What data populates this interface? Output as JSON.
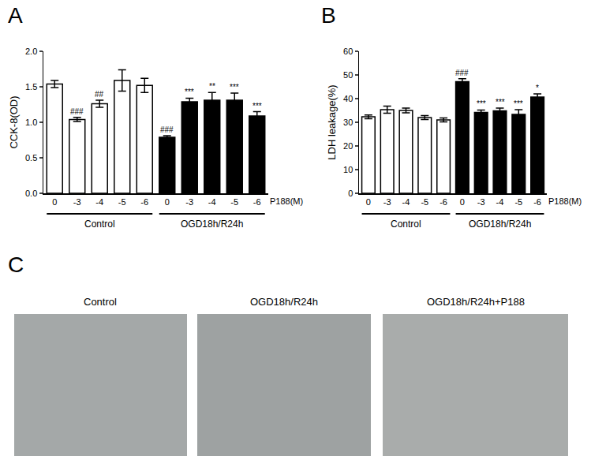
{
  "chart_data": [
    {
      "type": "bar",
      "title": "A",
      "y_label": "CCK-8(OD)",
      "x_label": "P188(M)",
      "categories": [
        "0",
        "-3",
        "-4",
        "-5",
        "-6",
        "0",
        "-3",
        "-4",
        "-5",
        "-6"
      ],
      "x_groups": [
        "Control",
        "OGD18h/R24h"
      ],
      "values": [
        1.54,
        1.04,
        1.26,
        1.59,
        1.52,
        0.79,
        1.29,
        1.31,
        1.31,
        1.09
      ],
      "errors": [
        0.05,
        0.03,
        0.05,
        0.15,
        0.1,
        0.02,
        0.05,
        0.11,
        0.1,
        0.06
      ],
      "marks": [
        null,
        "###",
        "##",
        null,
        null,
        "###",
        "***",
        "**",
        "***",
        "***"
      ],
      "colors": [
        "#ffffff",
        "#ffffff",
        "#ffffff",
        "#ffffff",
        "#ffffff",
        "#000000",
        "#000000",
        "#000000",
        "#000000",
        "#000000"
      ],
      "ylim": [
        0,
        2
      ],
      "yticks": [
        {
          "value": 0,
          "label": "0.0"
        },
        {
          "value": 0.5,
          "label": "0.5"
        },
        {
          "value": 1,
          "label": "1.0"
        },
        {
          "value": 1.5,
          "label": "1.5"
        },
        {
          "value": 2,
          "label": "2.0"
        }
      ],
      "grid": false
    },
    {
      "type": "bar",
      "title": "B",
      "y_label": "LDH leakage(%)",
      "x_label": "P188(M)",
      "categories": [
        "0",
        "-3",
        "-4",
        "-5",
        "-6",
        "0",
        "-3",
        "-4",
        "-5",
        "-6"
      ],
      "x_groups": [
        "Control",
        "OGD18h/R24h"
      ],
      "values": [
        32.3,
        35.3,
        35.0,
        32.0,
        31.0,
        47.2,
        34.2,
        34.8,
        33.3,
        40.7
      ],
      "errors": [
        0.8,
        1.5,
        1.0,
        0.8,
        0.8,
        1.2,
        1.0,
        1.2,
        2.0,
        1.3
      ],
      "marks": [
        null,
        null,
        null,
        null,
        null,
        "###",
        "***",
        "***",
        "***",
        "*"
      ],
      "colors": [
        "#ffffff",
        "#ffffff",
        "#ffffff",
        "#ffffff",
        "#ffffff",
        "#000000",
        "#000000",
        "#000000",
        "#000000",
        "#000000"
      ],
      "ylim": [
        0,
        60
      ],
      "yticks": [
        0,
        10,
        20,
        30,
        40,
        50,
        60
      ],
      "grid": false
    }
  ],
  "panel_c": {
    "label": "C",
    "titles": [
      "Control",
      "OGD18h/R24h",
      "OGD18h/R24h+P188"
    ]
  }
}
